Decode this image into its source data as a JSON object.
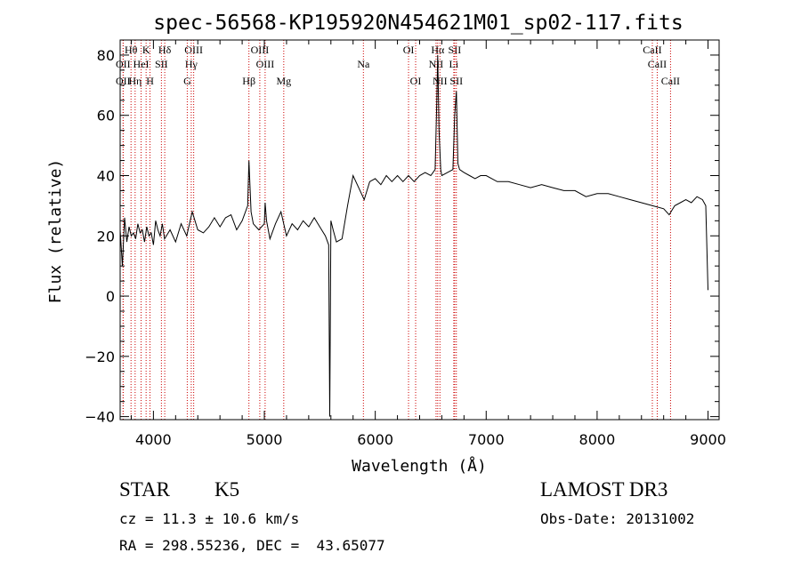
{
  "chart_data": {
    "type": "line",
    "title": "spec-56568-KP195920N454621M01_sp02-117.fits",
    "xlabel": "Wavelength (Å)",
    "ylabel": "Flux (relative)",
    "xlim": [
      3700,
      9100
    ],
    "ylim": [
      -41,
      85
    ],
    "x_ticks": [
      4000,
      5000,
      6000,
      7000,
      8000,
      9000
    ],
    "y_ticks": [
      -40,
      -20,
      0,
      20,
      40,
      60,
      80
    ],
    "grid": false,
    "series": [
      {
        "name": "spectrum",
        "color": "#000000",
        "x": [
          3700,
          3720,
          3740,
          3760,
          3780,
          3800,
          3820,
          3840,
          3860,
          3880,
          3900,
          3920,
          3940,
          3960,
          3980,
          4000,
          4020,
          4040,
          4060,
          4080,
          4100,
          4150,
          4200,
          4250,
          4300,
          4350,
          4400,
          4450,
          4500,
          4550,
          4600,
          4650,
          4700,
          4750,
          4800,
          4850,
          4861,
          4880,
          4900,
          4950,
          5000,
          5007,
          5020,
          5050,
          5100,
          5150,
          5200,
          5250,
          5300,
          5350,
          5400,
          5450,
          5500,
          5550,
          5580,
          5590,
          5600,
          5620,
          5650,
          5700,
          5750,
          5800,
          5850,
          5900,
          5950,
          6000,
          6050,
          6100,
          6150,
          6200,
          6250,
          6300,
          6350,
          6400,
          6450,
          6500,
          6540,
          6555,
          6563,
          6575,
          6590,
          6600,
          6650,
          6700,
          6716,
          6731,
          6745,
          6760,
          6800,
          6850,
          6900,
          6950,
          7000,
          7100,
          7200,
          7300,
          7400,
          7500,
          7600,
          7700,
          7800,
          7900,
          8000,
          8100,
          8200,
          8300,
          8400,
          8500,
          8600,
          8650,
          8700,
          8750,
          8800,
          8850,
          8900,
          8950,
          8980,
          9000
        ],
        "values": [
          22,
          10,
          26,
          18,
          23,
          20,
          21,
          19,
          24,
          21,
          22,
          18,
          23,
          20,
          21,
          17,
          25,
          22,
          20,
          24,
          19,
          22,
          18,
          24,
          20,
          28,
          22,
          21,
          23,
          26,
          23,
          26,
          27,
          22,
          25,
          30,
          45,
          28,
          24,
          22,
          24,
          31,
          25,
          19,
          24,
          28,
          20,
          24,
          22,
          25,
          23,
          26,
          23,
          20,
          17,
          -40,
          25,
          22,
          18,
          19,
          30,
          40,
          36,
          32,
          38,
          39,
          37,
          40,
          38,
          40,
          38,
          40,
          38,
          40,
          41,
          40,
          42,
          65,
          80,
          55,
          42,
          40,
          41,
          42,
          60,
          68,
          44,
          42,
          41,
          40,
          39,
          40,
          40,
          38,
          38,
          37,
          36,
          37,
          36,
          35,
          35,
          33,
          34,
          34,
          33,
          32,
          31,
          30,
          29,
          27,
          30,
          31,
          32,
          31,
          33,
          32,
          30,
          2
        ]
      }
    ],
    "line_markers": [
      {
        "label": "OII",
        "wavelength": 3727,
        "row": 2
      },
      {
        "label": "Hθ",
        "wavelength": 3798,
        "row": 1
      },
      {
        "label": "OII",
        "wavelength": 3727,
        "row": 3
      },
      {
        "label": "Hη",
        "wavelength": 3835,
        "row": 3
      },
      {
        "label": "HeI",
        "wavelength": 3889,
        "row": 2
      },
      {
        "label": "K",
        "wavelength": 3934,
        "row": 1
      },
      {
        "label": "H",
        "wavelength": 3969,
        "row": 3
      },
      {
        "label": "SII",
        "wavelength": 4072,
        "row": 2
      },
      {
        "label": "Hδ",
        "wavelength": 4102,
        "row": 1
      },
      {
        "label": "OIII",
        "wavelength": 4363,
        "row": 1
      },
      {
        "label": "Hγ",
        "wavelength": 4341,
        "row": 2
      },
      {
        "label": "G",
        "wavelength": 4305,
        "row": 3
      },
      {
        "label": "Hβ",
        "wavelength": 4861,
        "row": 3
      },
      {
        "label": "OIII",
        "wavelength": 4959,
        "row": 1
      },
      {
        "label": "OIII",
        "wavelength": 5007,
        "row": 2
      },
      {
        "label": "Mg",
        "wavelength": 5175,
        "row": 3
      },
      {
        "label": "Na",
        "wavelength": 5893,
        "row": 2
      },
      {
        "label": "OI",
        "wavelength": 6300,
        "row": 1
      },
      {
        "label": "OI",
        "wavelength": 6364,
        "row": 3
      },
      {
        "label": "Hα",
        "wavelength": 6563,
        "row": 1
      },
      {
        "label": "NII",
        "wavelength": 6548,
        "row": 2
      },
      {
        "label": "NII",
        "wavelength": 6583,
        "row": 3
      },
      {
        "label": "SII",
        "wavelength": 6716,
        "row": 1
      },
      {
        "label": "Li",
        "wavelength": 6708,
        "row": 2
      },
      {
        "label": "SII",
        "wavelength": 6731,
        "row": 3
      },
      {
        "label": "CaII",
        "wavelength": 8498,
        "row": 1
      },
      {
        "label": "CaII",
        "wavelength": 8542,
        "row": 2
      },
      {
        "label": "CaII",
        "wavelength": 8662,
        "row": 3
      }
    ]
  },
  "info": {
    "object_class": "STAR",
    "subclass": "K5",
    "survey": "LAMOST DR3",
    "redshift": "cz = 11.3 ± 10.6 km/s",
    "obs_date": "Obs-Date: 20131002",
    "coords": "RA = 298.55236, DEC =  43.65077"
  },
  "colors": {
    "line_marker": "#cc0000",
    "axis": "#000000",
    "spectrum": "#000000"
  }
}
